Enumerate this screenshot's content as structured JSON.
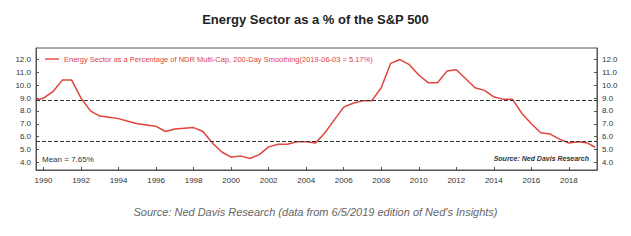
{
  "chart_data": {
    "type": "line",
    "title": "Energy Sector as a % of the S&P 500",
    "caption": "Source: Ned Davis Research (data from 6/5/2019 edition of Ned's Insights)",
    "annotations": [
      "Mean = 7.65%",
      "Source: Ned Davis Research"
    ],
    "legend": "upper left",
    "grid": false,
    "xlim": [
      1989.6,
      2019.5
    ],
    "xticks": [
      1990,
      1992,
      1994,
      1996,
      1998,
      2000,
      2002,
      2004,
      2006,
      2008,
      2010,
      2012,
      2014,
      2016,
      2018
    ],
    "ylim": [
      3.4,
      12.9
    ],
    "yticks": [
      {
        "value": 4,
        "label": "4.0"
      },
      {
        "value": 5,
        "label": "5.0"
      },
      {
        "value": 6,
        "label": "6.0"
      },
      {
        "value": 7,
        "label": "7.0"
      },
      {
        "value": 8,
        "label": "8.0"
      },
      {
        "value": 9,
        "label": "9.0"
      },
      {
        "value": 10,
        "label": "10.0"
      },
      {
        "value": 11,
        "label": "11.0"
      },
      {
        "value": 12,
        "label": "12.0"
      }
    ],
    "y2lim": [
      3.4,
      12.9
    ],
    "y2ticks": [
      {
        "value": 4,
        "label": "4.0"
      },
      {
        "value": 5,
        "label": "5.0"
      },
      {
        "value": 6,
        "label": "6.0"
      },
      {
        "value": 7,
        "label": "7.0"
      },
      {
        "value": 8,
        "label": "8.0"
      },
      {
        "value": 9,
        "label": "9.0"
      },
      {
        "value": 10,
        "label": "10.0"
      },
      {
        "value": 11,
        "label": "11.0"
      },
      {
        "value": 12,
        "label": "12.0"
      }
    ],
    "reference_lines": {
      "values": [
        8.8,
        5.6
      ],
      "line_style": "dashed",
      "color": "#333333"
    },
    "series": [
      {
        "name": "Energy Sector as a Percentage of NDR Multi-Cap, 200-Day Smoothing(2019-06-03 = 5.17%)",
        "color": "#e0443c",
        "line_style": "solid",
        "marker": "none",
        "x": [
          1989.6,
          1990,
          1990.5,
          1991,
          1991.5,
          1992,
          1992.5,
          1993,
          1993.5,
          1994,
          1994.5,
          1995,
          1996,
          1996.5,
          1997,
          1998,
          1998.5,
          1999,
          1999.5,
          2000,
          2000.5,
          2001,
          2001.5,
          2002,
          2002.5,
          2003,
          2003.5,
          2004,
          2004.5,
          2005,
          2005.5,
          2006,
          2006.5,
          2007,
          2007.5,
          2008,
          2008.5,
          2009,
          2009.5,
          2010,
          2010.5,
          2011,
          2011.5,
          2012,
          2012.5,
          2013,
          2013.5,
          2014,
          2014.5,
          2015,
          2015.5,
          2016,
          2016.5,
          2017,
          2017.5,
          2018,
          2018.5,
          2019,
          2019.4
        ],
        "values": [
          8.8,
          9.0,
          9.5,
          10.4,
          10.4,
          9.0,
          8.0,
          7.6,
          7.5,
          7.4,
          7.2,
          7.0,
          6.8,
          6.4,
          6.6,
          6.7,
          6.4,
          5.5,
          4.8,
          4.4,
          4.5,
          4.3,
          4.6,
          5.2,
          5.4,
          5.4,
          5.6,
          5.6,
          5.5,
          6.3,
          7.3,
          8.3,
          8.6,
          8.8,
          8.8,
          9.8,
          11.7,
          12.0,
          11.6,
          10.8,
          10.2,
          10.2,
          11.1,
          11.2,
          10.5,
          9.8,
          9.6,
          9.1,
          8.9,
          8.9,
          7.8,
          7.0,
          6.3,
          6.2,
          5.8,
          5.5,
          5.6,
          5.5,
          5.17
        ]
      }
    ]
  }
}
